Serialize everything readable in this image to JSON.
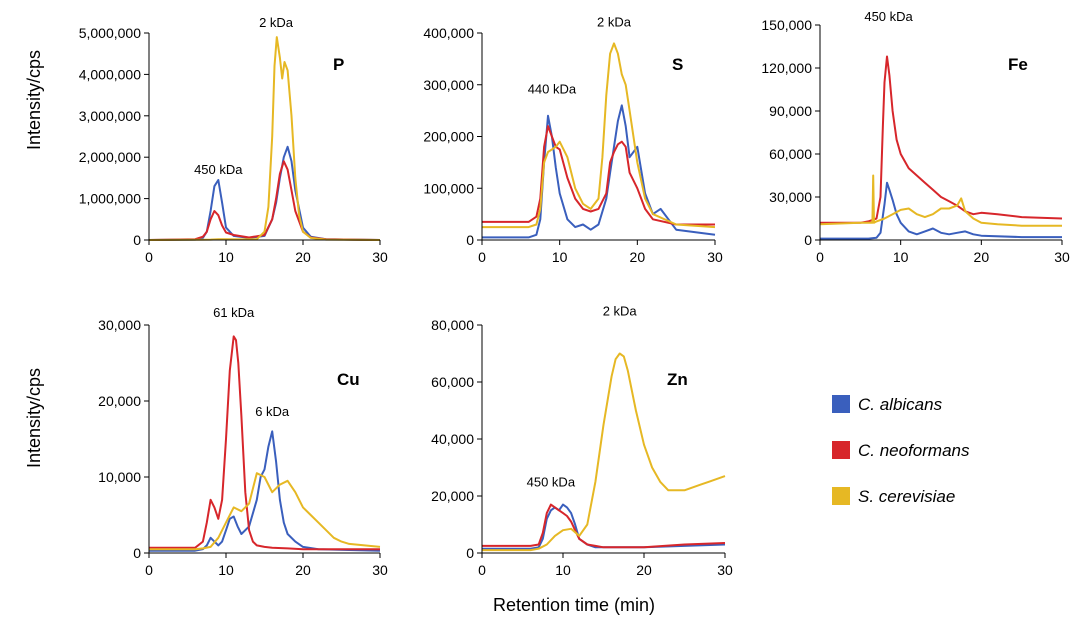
{
  "figure": {
    "y_label_top": "Intensity/cps",
    "y_label_bottom": "Intensity/cps",
    "x_label": "Retention time (min)"
  },
  "legend": {
    "items": [
      {
        "label": "C. albicans",
        "color": "#3a5fbd"
      },
      {
        "label": "C. neoformans",
        "color": "#d7262b"
      },
      {
        "label": "S. cerevisiae",
        "color": "#e6b824"
      }
    ]
  },
  "chart_data": [
    {
      "type": "line",
      "element": "P",
      "xlim": [
        0,
        30
      ],
      "ylim": [
        0,
        5000000
      ],
      "xticks": [
        0,
        10,
        20,
        30
      ],
      "yticks": [
        0,
        1000000,
        2000000,
        3000000,
        4000000,
        5000000
      ],
      "yticklabels": [
        "0",
        "1,000,000",
        "2,000,000",
        "3,000,000",
        "4,000,000",
        "5,000,000"
      ],
      "annotations": [
        {
          "text": "450 kDa",
          "x": 9,
          "y": 1500000
        },
        {
          "text": "2 kDa",
          "x": 16.5,
          "y": 5050000
        }
      ],
      "series": [
        {
          "name": "C. albicans",
          "color": "#3a5fbd",
          "x": [
            0,
            6,
            7,
            7.5,
            8,
            8.5,
            9,
            9.5,
            10,
            11,
            13,
            15,
            16,
            16.5,
            17,
            17.5,
            18,
            18.5,
            19,
            20,
            21,
            23,
            30
          ],
          "y": [
            0,
            10000,
            50000,
            200000,
            700000,
            1300000,
            1450000,
            900000,
            300000,
            100000,
            50000,
            100000,
            500000,
            900000,
            1500000,
            2000000,
            2250000,
            1900000,
            1200000,
            300000,
            80000,
            20000,
            0
          ]
        },
        {
          "name": "C. neoformans",
          "color": "#d7262b",
          "x": [
            0,
            6,
            7,
            7.5,
            8,
            8.5,
            9,
            9.5,
            10,
            11,
            13,
            15,
            16,
            16.5,
            17,
            17.5,
            18,
            18.5,
            19,
            20,
            21,
            23,
            30
          ],
          "y": [
            0,
            20000,
            80000,
            200000,
            500000,
            700000,
            600000,
            350000,
            180000,
            120000,
            60000,
            120000,
            500000,
            1000000,
            1600000,
            1900000,
            1700000,
            1200000,
            700000,
            200000,
            60000,
            20000,
            0
          ]
        },
        {
          "name": "S. cerevisiae",
          "color": "#e6b824",
          "x": [
            0,
            6,
            8,
            9,
            10,
            12,
            14,
            15,
            15.5,
            16,
            16.3,
            16.6,
            17,
            17.3,
            17.6,
            18,
            18.5,
            19,
            19.5,
            20,
            21,
            23,
            30
          ],
          "y": [
            0,
            5000,
            10000,
            20000,
            20000,
            15000,
            20000,
            200000,
            800000,
            2500000,
            4200000,
            4900000,
            4400000,
            3900000,
            4300000,
            4100000,
            3000000,
            1500000,
            600000,
            200000,
            50000,
            10000,
            0
          ]
        }
      ]
    },
    {
      "type": "line",
      "element": "S",
      "xlim": [
        0,
        30
      ],
      "ylim": [
        0,
        400000
      ],
      "xticks": [
        0,
        10,
        20,
        30
      ],
      "yticks": [
        0,
        100000,
        200000,
        300000,
        400000
      ],
      "yticklabels": [
        "0",
        "100,000",
        "200,000",
        "300,000",
        "400,000"
      ],
      "annotations": [
        {
          "text": "440 kDa",
          "x": 9,
          "y": 275000
        },
        {
          "text": "2 kDa",
          "x": 17,
          "y": 405000
        }
      ],
      "series": [
        {
          "name": "C. albicans",
          "color": "#3a5fbd",
          "x": [
            0,
            6,
            7,
            7.5,
            8,
            8.5,
            9,
            9.5,
            10,
            11,
            12,
            13,
            14,
            15,
            16,
            16.5,
            17,
            17.5,
            18,
            18.5,
            19,
            20,
            21,
            22,
            23,
            25,
            30
          ],
          "y": [
            5000,
            5000,
            10000,
            40000,
            150000,
            240000,
            200000,
            140000,
            90000,
            40000,
            25000,
            30000,
            20000,
            30000,
            80000,
            130000,
            180000,
            230000,
            260000,
            220000,
            160000,
            180000,
            90000,
            50000,
            60000,
            20000,
            10000
          ]
        },
        {
          "name": "C. neoformans",
          "color": "#d7262b",
          "x": [
            0,
            6,
            7,
            7.5,
            8,
            8.5,
            9,
            9.5,
            10,
            11,
            12,
            13,
            14,
            15,
            16,
            16.5,
            17,
            17.5,
            18,
            18.5,
            19,
            20,
            21,
            22,
            25,
            30
          ],
          "y": [
            35000,
            35000,
            45000,
            80000,
            180000,
            220000,
            200000,
            180000,
            175000,
            120000,
            80000,
            60000,
            55000,
            60000,
            90000,
            150000,
            170000,
            185000,
            190000,
            180000,
            130000,
            100000,
            60000,
            40000,
            30000,
            30000
          ]
        },
        {
          "name": "S. cerevisiae",
          "color": "#e6b824",
          "x": [
            0,
            6,
            7,
            7.5,
            8,
            8.5,
            9,
            9.5,
            10,
            11,
            12,
            13,
            14,
            15,
            15.5,
            16,
            16.5,
            17,
            17.5,
            18,
            18.5,
            19,
            20,
            21,
            22,
            25,
            30
          ],
          "y": [
            25000,
            25000,
            30000,
            60000,
            150000,
            170000,
            175000,
            180000,
            190000,
            160000,
            100000,
            70000,
            60000,
            80000,
            160000,
            280000,
            360000,
            380000,
            360000,
            320000,
            300000,
            250000,
            150000,
            80000,
            50000,
            30000,
            25000
          ]
        }
      ]
    },
    {
      "type": "line",
      "element": "Fe",
      "xlim": [
        0,
        30
      ],
      "ylim": [
        0,
        150000
      ],
      "xticks": [
        0,
        10,
        20,
        30
      ],
      "yticks": [
        0,
        30000,
        60000,
        90000,
        120000,
        150000
      ],
      "yticklabels": [
        "0",
        "30,000",
        "60,000",
        "90,000",
        "120,000",
        "150,000"
      ],
      "annotations": [
        {
          "text": "450 kDa",
          "x": 8.5,
          "y": 150000
        }
      ],
      "series": [
        {
          "name": "C. albicans",
          "color": "#3a5fbd",
          "x": [
            0,
            6,
            7,
            7.5,
            8,
            8.3,
            8.6,
            9,
            9.5,
            10,
            11,
            12,
            13,
            14,
            15,
            16,
            17,
            18,
            19,
            20,
            25,
            30
          ],
          "y": [
            1000,
            1000,
            1500,
            5000,
            25000,
            40000,
            35000,
            28000,
            18000,
            12000,
            6000,
            4000,
            6000,
            8000,
            5000,
            4000,
            5000,
            6000,
            4000,
            3000,
            2000,
            2000
          ]
        },
        {
          "name": "C. neoformans",
          "color": "#d7262b",
          "x": [
            0,
            5,
            6,
            7,
            7.5,
            7.8,
            8,
            8.3,
            8.6,
            9,
            9.5,
            10,
            11,
            12,
            13,
            14,
            15,
            16,
            17,
            18,
            19,
            20,
            22,
            25,
            30
          ],
          "y": [
            12000,
            12000,
            13000,
            15000,
            30000,
            80000,
            110000,
            128000,
            115000,
            90000,
            70000,
            60000,
            50000,
            45000,
            40000,
            35000,
            30000,
            27000,
            24000,
            20000,
            18000,
            19000,
            18000,
            16000,
            15000
          ]
        },
        {
          "name": "S. cerevisiae",
          "color": "#e6b824",
          "x": [
            0,
            5,
            6.5,
            6.6,
            6.7,
            7,
            8,
            9,
            10,
            11,
            12,
            13,
            14,
            15,
            16,
            17,
            17.5,
            18,
            19,
            20,
            22,
            25,
            30
          ],
          "y": [
            11000,
            12000,
            12000,
            45000,
            12000,
            13000,
            15000,
            18000,
            21000,
            22000,
            18000,
            16000,
            18000,
            22000,
            22000,
            24000,
            29000,
            20000,
            15000,
            12000,
            11000,
            10000,
            10000
          ]
        }
      ]
    },
    {
      "type": "line",
      "element": "Cu",
      "xlim": [
        0,
        30
      ],
      "ylim": [
        0,
        30000
      ],
      "xticks": [
        0,
        10,
        20,
        30
      ],
      "yticks": [
        0,
        10000,
        20000,
        30000
      ],
      "yticklabels": [
        "0",
        "10,000",
        "20,000",
        "30,000"
      ],
      "annotations": [
        {
          "text": "61 kDa",
          "x": 11,
          "y": 30500
        },
        {
          "text": "6 kDa",
          "x": 16,
          "y": 17500
        }
      ],
      "series": [
        {
          "name": "C. albicans",
          "color": "#3a5fbd",
          "x": [
            0,
            6,
            7,
            7.5,
            8,
            8.5,
            9,
            9.5,
            10,
            10.5,
            11,
            11.5,
            12,
            13,
            14,
            14.5,
            15,
            15.5,
            16,
            16.5,
            17,
            17.5,
            18,
            19,
            20,
            22,
            30
          ],
          "y": [
            300,
            300,
            500,
            1000,
            2000,
            1500,
            1000,
            1500,
            3000,
            4500,
            4800,
            3500,
            2500,
            3500,
            7000,
            10000,
            11000,
            14000,
            16000,
            12000,
            7000,
            4000,
            2500,
            1500,
            800,
            500,
            300
          ]
        },
        {
          "name": "C. neoformans",
          "color": "#d7262b",
          "x": [
            0,
            6,
            7,
            7.5,
            8,
            8.5,
            9,
            9.5,
            10,
            10.5,
            11,
            11.3,
            11.6,
            12,
            12.5,
            13,
            13.5,
            14,
            15,
            16,
            18,
            20,
            25,
            30
          ],
          "y": [
            700,
            700,
            1500,
            4000,
            7000,
            6000,
            4500,
            7000,
            15000,
            24000,
            28500,
            28000,
            25000,
            18000,
            8000,
            3000,
            1500,
            1000,
            800,
            700,
            600,
            500,
            500,
            500
          ]
        },
        {
          "name": "S. cerevisiae",
          "color": "#e6b824",
          "x": [
            0,
            6,
            7,
            8,
            9,
            10,
            11,
            12,
            13,
            14,
            15,
            16,
            17,
            18,
            19,
            20,
            21,
            22,
            23,
            24,
            25,
            26,
            28,
            30
          ],
          "y": [
            500,
            500,
            600,
            800,
            2000,
            4000,
            6000,
            5500,
            6500,
            10500,
            10000,
            8000,
            9000,
            9500,
            8000,
            6000,
            5000,
            4000,
            3000,
            2000,
            1500,
            1200,
            1000,
            800
          ]
        }
      ]
    },
    {
      "type": "line",
      "element": "Zn",
      "xlim": [
        0,
        30
      ],
      "ylim": [
        0,
        80000
      ],
      "xticks": [
        0,
        10,
        20,
        30
      ],
      "yticks": [
        0,
        20000,
        40000,
        60000,
        80000
      ],
      "yticklabels": [
        "0",
        "20,000",
        "40,000",
        "60,000",
        "80,000"
      ],
      "annotations": [
        {
          "text": "450 kDa",
          "x": 8.5,
          "y": 22000
        },
        {
          "text": "2 kDa",
          "x": 17,
          "y": 82000
        }
      ],
      "series": [
        {
          "name": "C. albicans",
          "color": "#3a5fbd",
          "x": [
            0,
            6,
            7,
            7.5,
            8,
            8.5,
            9,
            9.5,
            10,
            10.5,
            11,
            11.5,
            12,
            13,
            14,
            15,
            20,
            25,
            30
          ],
          "y": [
            1500,
            1500,
            2000,
            5000,
            12000,
            15000,
            16000,
            15000,
            17000,
            16000,
            14000,
            10000,
            5000,
            3000,
            2000,
            2000,
            2000,
            2500,
            3000
          ]
        },
        {
          "name": "C. neoformans",
          "color": "#d7262b",
          "x": [
            0,
            6,
            7,
            7.5,
            8,
            8.5,
            9,
            9.5,
            10,
            10.5,
            11,
            11.5,
            12,
            13,
            14,
            15,
            20,
            25,
            30
          ],
          "y": [
            2500,
            2500,
            3000,
            7000,
            14000,
            17000,
            16000,
            15000,
            14000,
            13000,
            11000,
            8000,
            5000,
            3000,
            2500,
            2000,
            2000,
            3000,
            3500
          ]
        },
        {
          "name": "S. cerevisiae",
          "color": "#e6b824",
          "x": [
            0,
            6,
            7,
            8,
            9,
            10,
            11,
            12,
            13,
            14,
            15,
            16,
            16.5,
            17,
            17.5,
            18,
            19,
            20,
            21,
            22,
            23,
            24,
            25,
            26,
            27,
            28,
            30
          ],
          "y": [
            1000,
            1000,
            1500,
            3000,
            6000,
            8000,
            8500,
            6000,
            10000,
            25000,
            45000,
            62000,
            68000,
            70000,
            69000,
            64000,
            50000,
            38000,
            30000,
            25000,
            22000,
            22000,
            22000,
            23000,
            24000,
            25000,
            27000
          ]
        }
      ]
    }
  ]
}
